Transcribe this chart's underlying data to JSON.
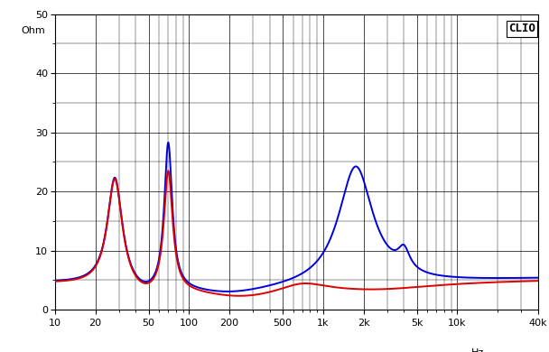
{
  "title": "CLIO",
  "ylabel": "Ohm",
  "xmin": 10,
  "xmax": 40000,
  "ymin": 0,
  "ymax": 50,
  "yticks": [
    0,
    10,
    20,
    30,
    40,
    50
  ],
  "background_color": "#ffffff",
  "grid_color": "#000000",
  "line_blue": "#0000dd",
  "line_red": "#dd0000",
  "line_width": 1.4
}
